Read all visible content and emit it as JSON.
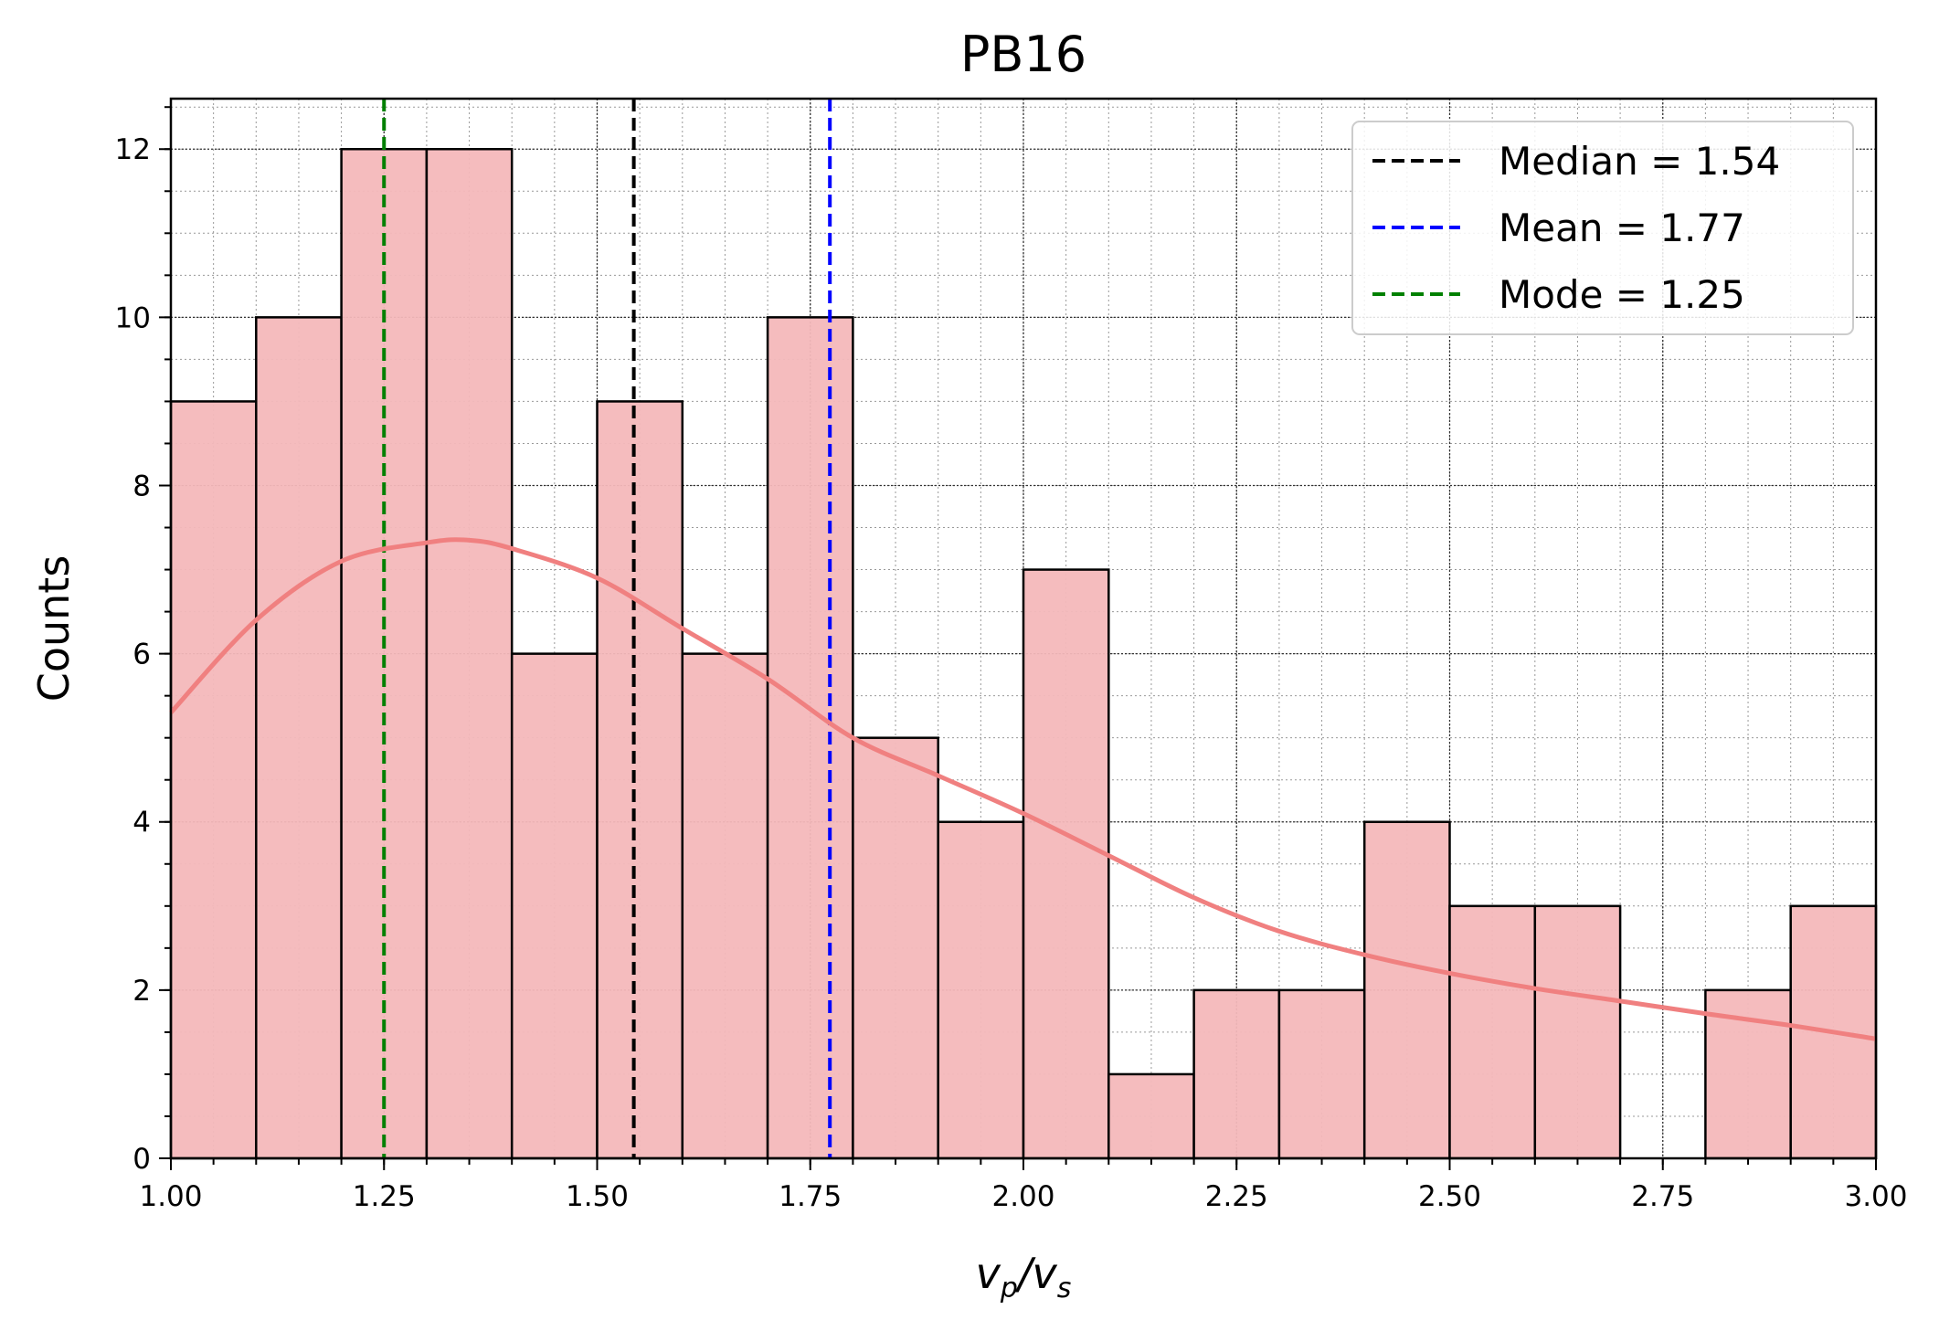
{
  "chart_data": {
    "type": "bar",
    "title": "PB16",
    "xlabel": "v_p/v_s",
    "ylabel": "Counts",
    "xlim": [
      1.0,
      3.0
    ],
    "ylim": [
      0,
      12.6
    ],
    "bin_width": 0.1,
    "bin_starts": [
      1.0,
      1.1,
      1.2,
      1.3,
      1.4,
      1.5,
      1.6,
      1.7,
      1.8,
      1.9,
      2.0,
      2.1,
      2.2,
      2.3,
      2.4,
      2.5,
      2.6,
      2.7,
      2.8,
      2.9
    ],
    "values": [
      9,
      10,
      12,
      12,
      6,
      9,
      6,
      10,
      5,
      4,
      7,
      1,
      2,
      2,
      4,
      3,
      3,
      0,
      2,
      3
    ],
    "bar_color": "#f4b8ba",
    "bar_edge_color": "#000000",
    "x_ticks": [
      "1.00",
      "1.25",
      "1.50",
      "1.75",
      "2.00",
      "2.25",
      "2.50",
      "2.75",
      "3.00"
    ],
    "y_ticks": [
      "0",
      "2",
      "4",
      "6",
      "8",
      "10",
      "12"
    ],
    "grid": true,
    "kde": {
      "color": "#f08080",
      "x": [
        1.0,
        1.1,
        1.2,
        1.3,
        1.35,
        1.4,
        1.5,
        1.6,
        1.7,
        1.8,
        1.9,
        2.0,
        2.1,
        2.2,
        2.3,
        2.4,
        2.5,
        2.6,
        2.7,
        2.8,
        2.9,
        3.0
      ],
      "y": [
        5.3,
        6.4,
        7.1,
        7.32,
        7.35,
        7.25,
        6.9,
        6.3,
        5.7,
        5.0,
        4.55,
        4.1,
        3.6,
        3.1,
        2.7,
        2.42,
        2.2,
        2.02,
        1.87,
        1.72,
        1.58,
        1.42
      ]
    },
    "vlines": [
      {
        "label": "Median = 1.54",
        "x": 1.543,
        "color": "#000000"
      },
      {
        "label": "Mean = 1.77",
        "x": 1.773,
        "color": "#0000ff"
      },
      {
        "label": "Mode = 1.25",
        "x": 1.25,
        "color": "#008000"
      }
    ],
    "legend_position": "top-right"
  }
}
